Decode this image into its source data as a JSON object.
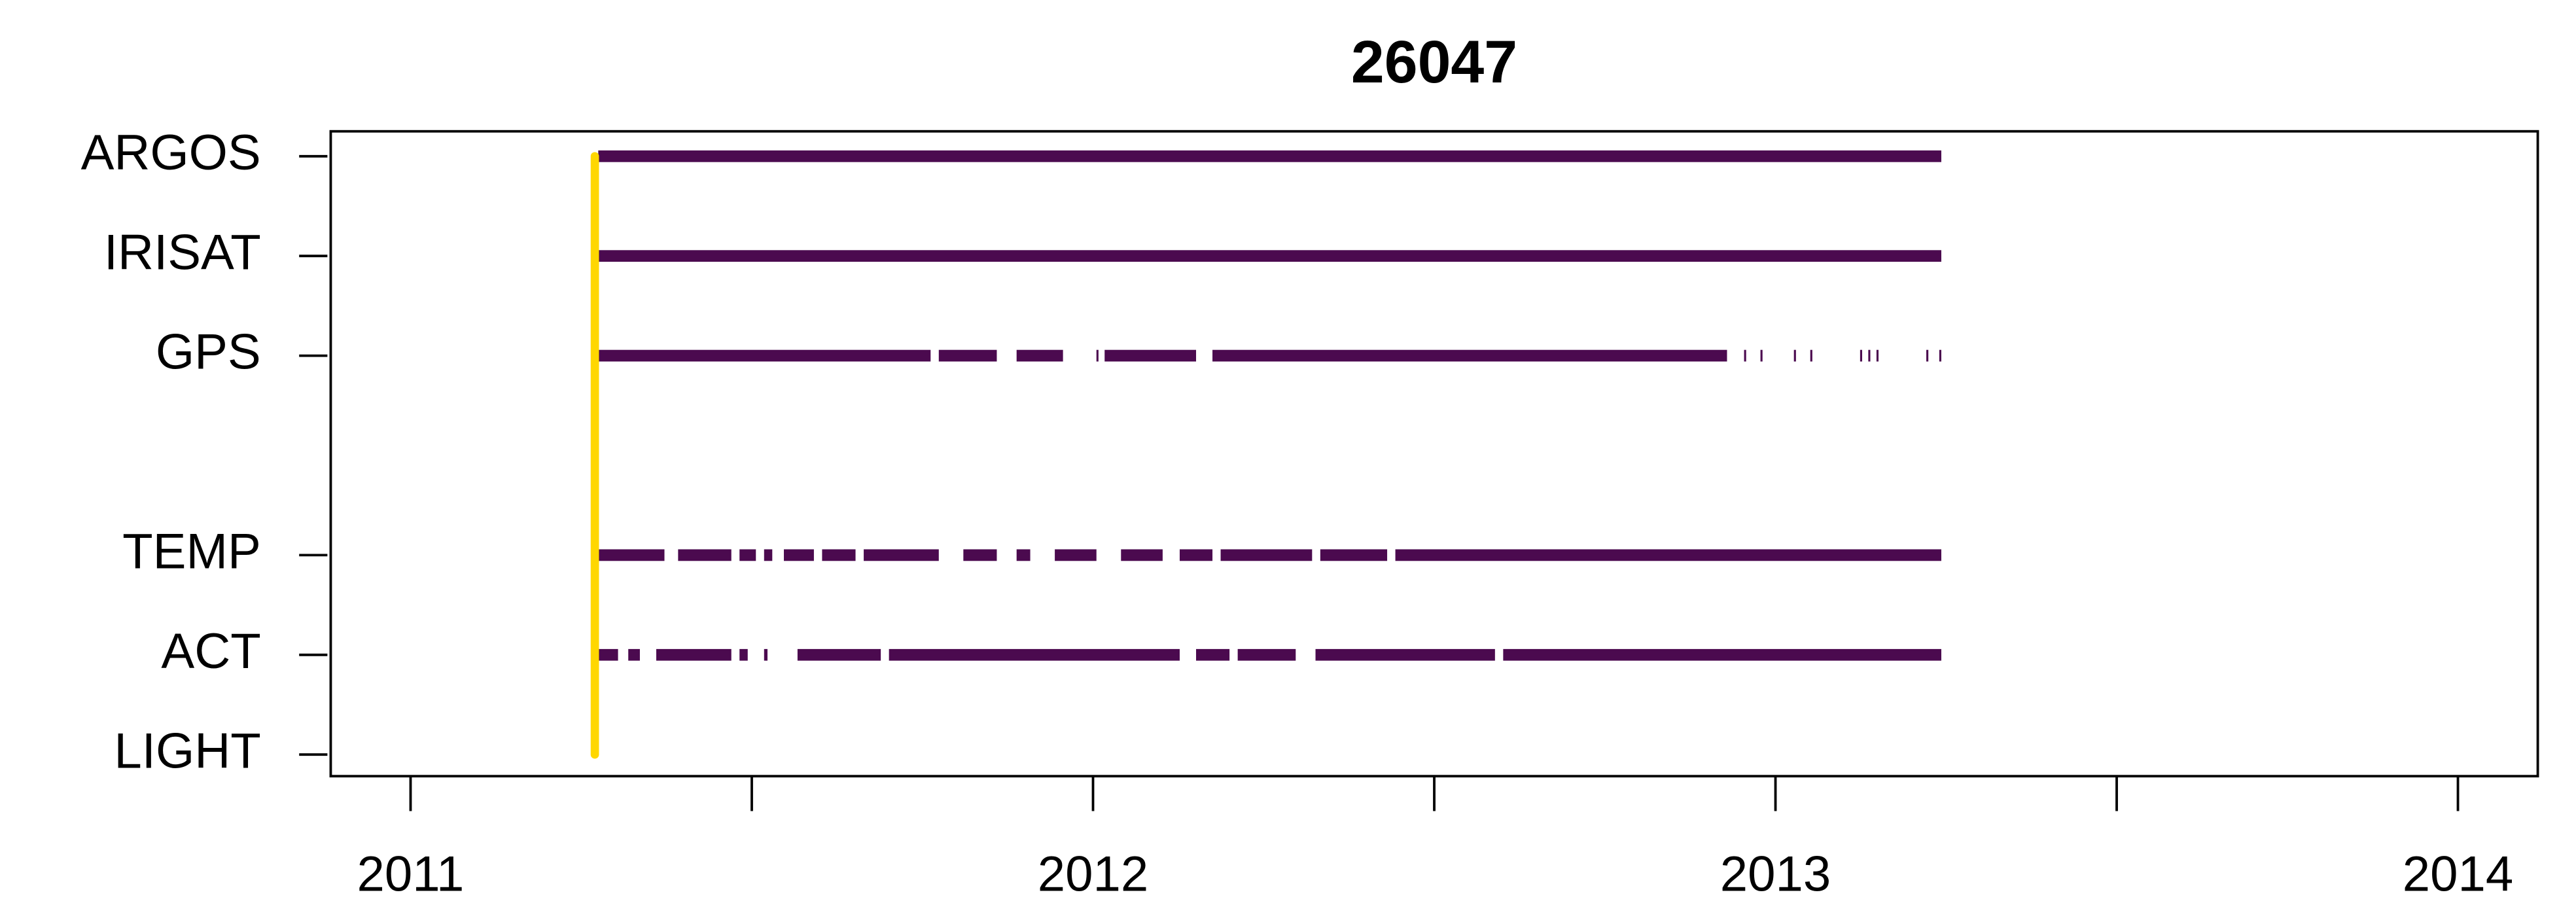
{
  "chart_data": {
    "type": "timeline",
    "title": "26047",
    "categories": [
      "ARGOS",
      "IRISAT",
      "GPS",
      null,
      "TEMP",
      "ACT",
      "LIGHT"
    ],
    "color": "#4b0a4f",
    "segments": [
      [
        [
          2011.275,
          2013.243
        ]
      ],
      [
        [
          2011.275,
          2013.243
        ]
      ],
      [
        [
          2011.275,
          2011.762
        ],
        [
          2011.774,
          2011.859
        ],
        [
          2011.888,
          2011.956
        ],
        [
          2012.005,
          2012.008
        ],
        [
          2012.017,
          2012.151
        ],
        [
          2012.175,
          2012.929
        ],
        [
          2012.954,
          2012.957
        ],
        [
          2012.978,
          2012.981
        ],
        [
          2013.027,
          2013.03
        ],
        [
          2013.051,
          2013.054
        ],
        [
          2013.124,
          2013.127
        ],
        [
          2013.136,
          2013.139
        ],
        [
          2013.148,
          2013.151
        ],
        [
          2013.221,
          2013.224
        ],
        [
          2013.24,
          2013.243
        ]
      ],
      [],
      [
        [
          2011.275,
          2011.372
        ],
        [
          2011.392,
          2011.47
        ],
        [
          2011.482,
          2011.506
        ],
        [
          2011.518,
          2011.53
        ],
        [
          2011.547,
          2011.591
        ],
        [
          2011.603,
          2011.652
        ],
        [
          2011.664,
          2011.774
        ],
        [
          2011.81,
          2011.859
        ],
        [
          2011.888,
          2011.908
        ],
        [
          2011.944,
          2012.005
        ],
        [
          2012.041,
          2012.102
        ],
        [
          2012.127,
          2012.175
        ],
        [
          2012.187,
          2012.321
        ],
        [
          2012.333,
          2012.431
        ],
        [
          2012.443,
          2013.243
        ]
      ],
      [
        [
          2011.275,
          2011.304
        ],
        [
          2011.319,
          2011.336
        ],
        [
          2011.36,
          2011.47
        ],
        [
          2011.482,
          2011.494
        ],
        [
          2011.518,
          2011.523
        ],
        [
          2011.567,
          2011.689
        ],
        [
          2011.701,
          2012.127
        ],
        [
          2012.151,
          2012.2
        ],
        [
          2012.212,
          2012.297
        ],
        [
          2012.326,
          2012.589
        ],
        [
          2012.601,
          2013.243
        ]
      ],
      []
    ],
    "markers": [
      {
        "x": 2011.27,
        "color": "#FFD700"
      }
    ],
    "xlim": [
      2010.883,
      2014.117
    ],
    "xticks": [
      2011,
      {
        "value": 2011.5,
        "label": null
      },
      2012,
      {
        "value": 2012.5,
        "label": null
      },
      2013,
      {
        "value": 2013.5,
        "label": null
      },
      2014
    ]
  }
}
